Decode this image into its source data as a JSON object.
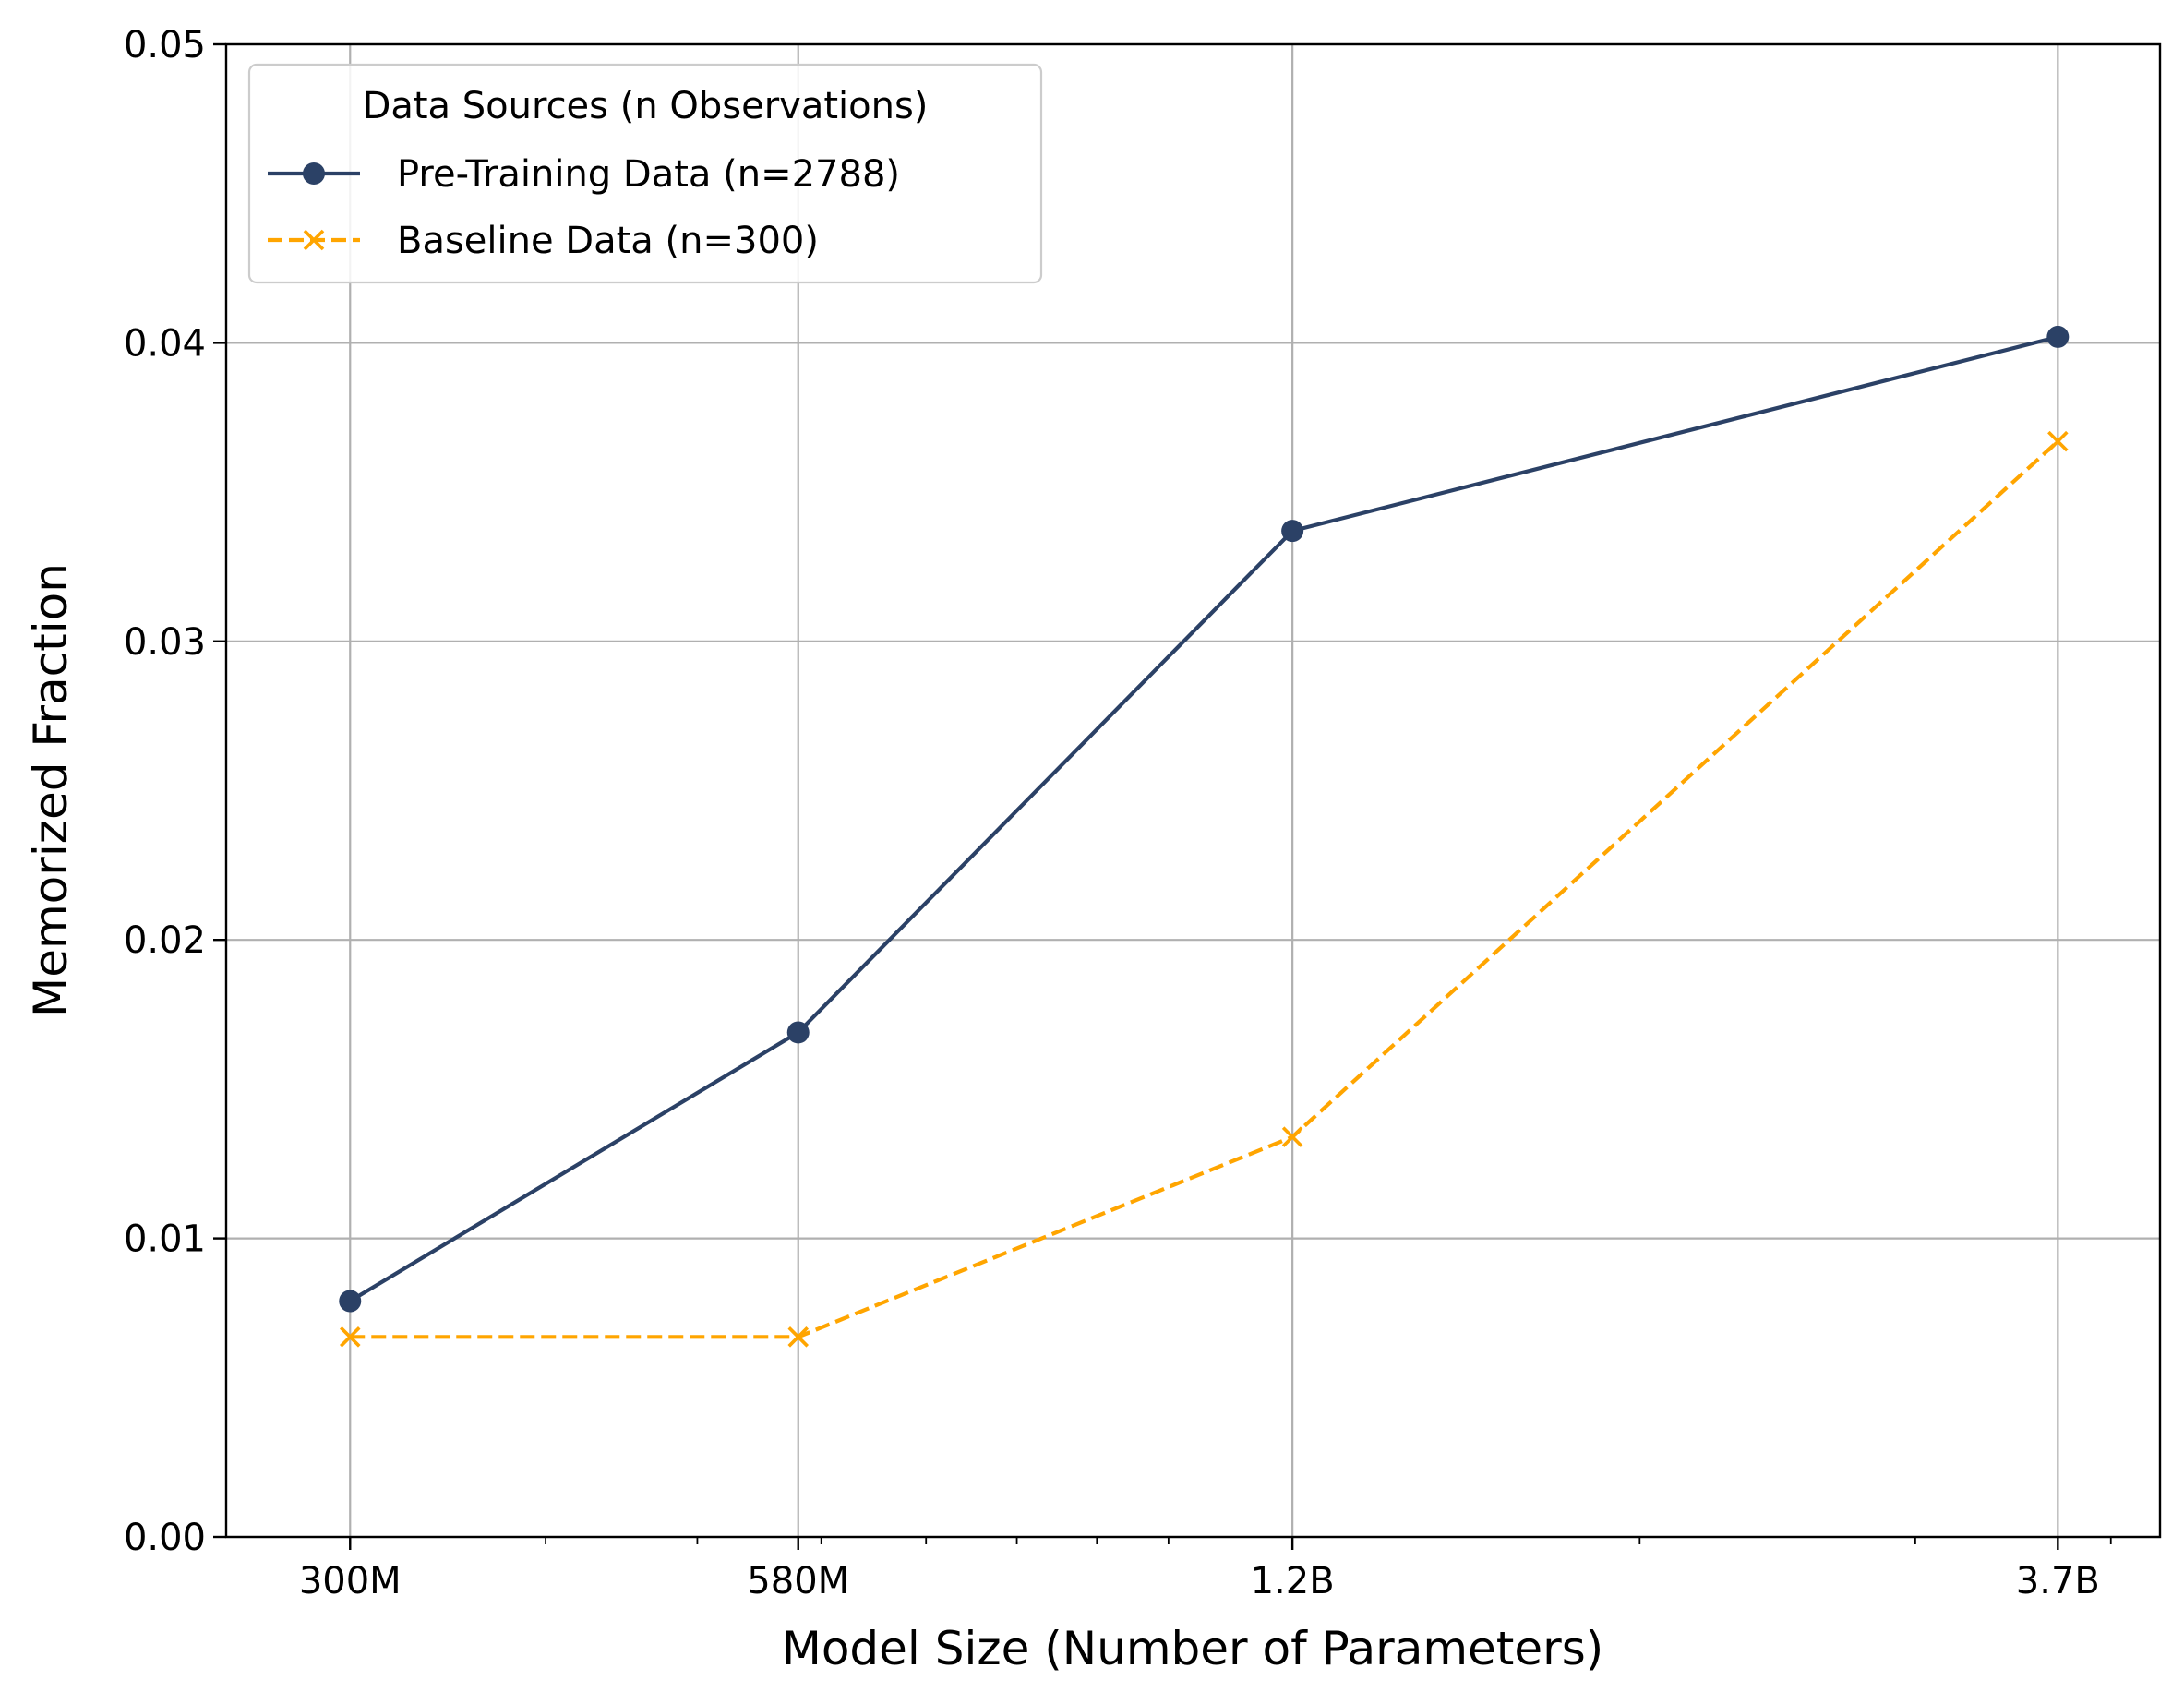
{
  "chart_data": {
    "type": "line",
    "title": "",
    "xlabel": "Model Size (Number of Parameters)",
    "ylabel": "Memorized Fraction",
    "x_scale": "log",
    "x": [
      300000000,
      580000000,
      1200000000,
      3700000000
    ],
    "x_tick_labels": [
      "300M",
      "580M",
      "1.2B",
      "3.7B"
    ],
    "y_ticks": [
      "0.00",
      "0.01",
      "0.02",
      "0.03",
      "0.04",
      "0.05"
    ],
    "ylim": [
      0,
      0.05
    ],
    "grid": true,
    "legend": {
      "title": "Data Sources (n Observations)",
      "position": "top-left"
    },
    "series": [
      {
        "name": "Pre-Training Data (n=2788)",
        "values": [
          0.0079,
          0.0169,
          0.0337,
          0.0402
        ],
        "color": "#2b4166",
        "line_style": "solid",
        "marker": "circle"
      },
      {
        "name": "Baseline Data (n=300)",
        "values": [
          0.0067,
          0.0067,
          0.0134,
          0.0367
        ],
        "color": "#ffa500",
        "line_style": "dashed",
        "marker": "x"
      }
    ]
  }
}
